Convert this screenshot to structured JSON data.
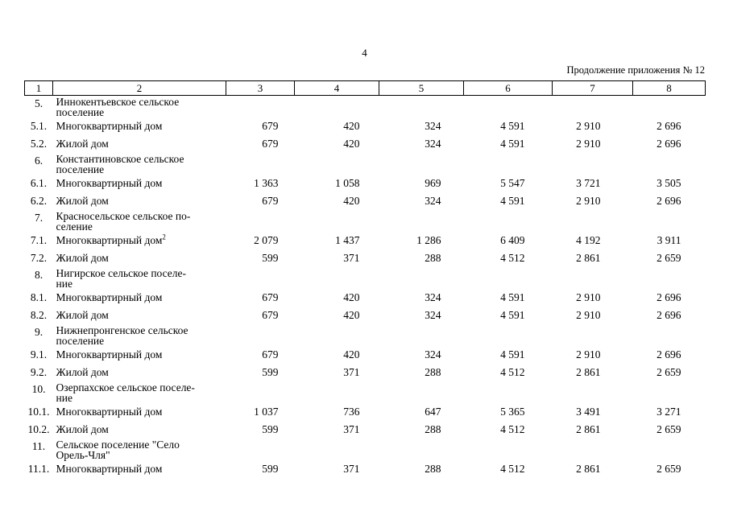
{
  "page": {
    "number": "4",
    "continuation": "Продолжение приложения № 12"
  },
  "table": {
    "headers": [
      "1",
      "2",
      "3",
      "4",
      "5",
      "6",
      "7",
      "8"
    ],
    "rows": [
      {
        "num": "5.",
        "name": "Иннокентьевское сельское\nпоселение",
        "values": []
      },
      {
        "num": "5.1.",
        "name": "Многоквартирный дом",
        "values": [
          "679",
          "420",
          "324",
          "4 591",
          "2 910",
          "2 696"
        ]
      },
      {
        "num": "5.2.",
        "name": "Жилой дом",
        "values": [
          "679",
          "420",
          "324",
          "4 591",
          "2 910",
          "2 696"
        ]
      },
      {
        "num": "6.",
        "name": "Константиновское сельское\nпоселение",
        "values": []
      },
      {
        "num": "6.1.",
        "name": "Многоквартирный дом",
        "values": [
          "1 363",
          "1 058",
          "969",
          "5 547",
          "3 721",
          "3 505"
        ]
      },
      {
        "num": "6.2.",
        "name": "Жилой дом",
        "values": [
          "679",
          "420",
          "324",
          "4 591",
          "2 910",
          "2 696"
        ]
      },
      {
        "num": "7.",
        "name": "Красносельское сельское по-\nселение",
        "values": []
      },
      {
        "num": "7.1.",
        "name": "Многоквартирный дом",
        "sup": "2",
        "values": [
          "2 079",
          "1 437",
          "1 286",
          "6 409",
          "4 192",
          "3 911"
        ]
      },
      {
        "num": "7.2.",
        "name": "Жилой дом",
        "values": [
          "599",
          "371",
          "288",
          "4 512",
          "2 861",
          "2 659"
        ]
      },
      {
        "num": "8.",
        "name": "Нигирское сельское поселе-\nние",
        "values": []
      },
      {
        "num": "8.1.",
        "name": "Многоквартирный дом",
        "values": [
          "679",
          "420",
          "324",
          "4 591",
          "2 910",
          "2 696"
        ]
      },
      {
        "num": "8.2.",
        "name": "Жилой дом",
        "values": [
          "679",
          "420",
          "324",
          "4 591",
          "2 910",
          "2 696"
        ]
      },
      {
        "num": "9.",
        "name": "Нижнепронгенское сельское\nпоселение",
        "values": []
      },
      {
        "num": "9.1.",
        "name": "Многоквартирный дом",
        "values": [
          "679",
          "420",
          "324",
          "4 591",
          "2 910",
          "2 696"
        ]
      },
      {
        "num": "9.2.",
        "name": "Жилой дом",
        "values": [
          "599",
          "371",
          "288",
          "4 512",
          "2 861",
          "2 659"
        ]
      },
      {
        "num": "10.",
        "name": "Озерпахское сельское поселе-\nние",
        "values": []
      },
      {
        "num": "10.1.",
        "name": "Многоквартирный дом",
        "values": [
          "1 037",
          "736",
          "647",
          "5 365",
          "3 491",
          "3 271"
        ]
      },
      {
        "num": "10.2.",
        "name": "Жилой дом",
        "values": [
          "599",
          "371",
          "288",
          "4 512",
          "2 861",
          "2 659"
        ]
      },
      {
        "num": "11.",
        "name": "Сельское поселение \"Село\nОрель-Чля\"",
        "values": []
      },
      {
        "num": "11.1.",
        "name": "Многоквартирный дом",
        "values": [
          "599",
          "371",
          "288",
          "4 512",
          "2 861",
          "2 659"
        ]
      }
    ]
  }
}
